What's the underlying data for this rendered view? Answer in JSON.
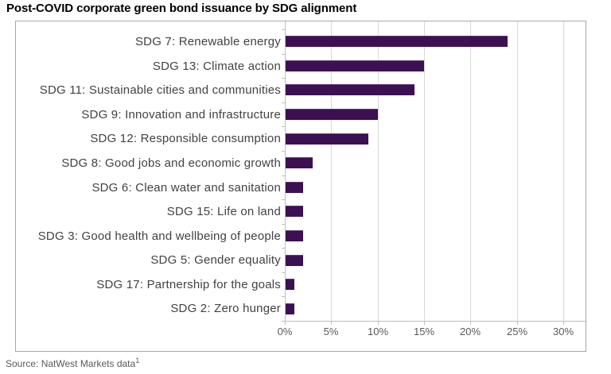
{
  "title": "Post-COVID corporate green bond issuance by SDG alignment",
  "source": {
    "text": "Source: NatWest Markets data",
    "superscript": "1"
  },
  "chart_data": {
    "type": "bar",
    "orientation": "horizontal",
    "title": "Post-COVID corporate green bond issuance by SDG alignment",
    "categories": [
      "SDG 7: Renewable energy",
      "SDG 13: Climate action",
      "SDG 11: Sustainable cities and communities",
      "SDG 9: Innovation and infrastructure",
      "SDG 12: Responsible consumption",
      "SDG 8: Good jobs and economic growth",
      "SDG 6: Clean water and sanitation",
      "SDG 15: Life on land",
      "SDG 3: Good health and wellbeing of people",
      "SDG 5: Gender equality",
      "SDG 17: Partnership for the goals",
      "SDG 2: Zero hunger"
    ],
    "values": [
      24,
      15,
      14,
      10,
      9,
      3,
      2,
      2,
      2,
      2,
      1,
      1
    ],
    "value_unit": "%",
    "xlabel": "",
    "ylabel": "",
    "x_ticks": [
      "0%",
      "5%",
      "10%",
      "15%",
      "20%",
      "25%",
      "30%"
    ],
    "x_tick_values": [
      0,
      5,
      10,
      15,
      20,
      25,
      30
    ],
    "xlim": [
      0,
      32.6
    ],
    "grid": "vertical",
    "legend": "none",
    "colors": {
      "bar": "#3c1053",
      "gridline": "#d9d9d9",
      "axis": "#bfbfbf",
      "category_label": "#424242",
      "tick_label": "#595959",
      "plot_border": "#a6a6a6",
      "title": "#000000"
    }
  }
}
